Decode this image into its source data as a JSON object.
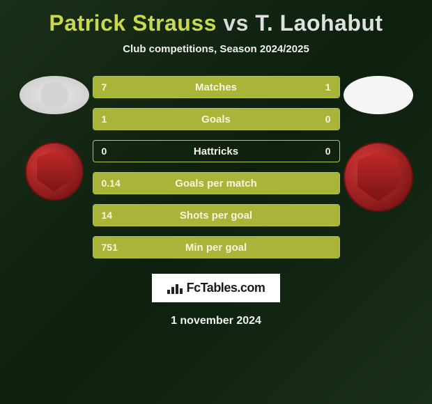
{
  "title": {
    "player1": "Patrick Strauss",
    "vs": "vs",
    "player2": "T. Laohabut",
    "player1_color": "#c9d94a",
    "vs_color": "#d9d9d9",
    "player2_color": "#e0e0e0"
  },
  "subtitle": "Club competitions, Season 2024/2025",
  "background": {
    "gradient_start": "#1a2f1a",
    "gradient_mid": "#0d1f0d",
    "gradient_end": "#1a2f1a"
  },
  "bar_style": {
    "border_color": "#b8c63e",
    "fill_color_p1": "#a8b538",
    "fill_color_p2": "#a8b538",
    "empty_color": "transparent",
    "text_color": "#f5f5e0",
    "height": 32,
    "radius": 4
  },
  "stats": [
    {
      "label": "Matches",
      "v1": "7",
      "v2": "1",
      "pct1": 0.88,
      "pct2": 0.12
    },
    {
      "label": "Goals",
      "v1": "1",
      "v2": "0",
      "pct1": 1.0,
      "pct2": 0.0
    },
    {
      "label": "Hattricks",
      "v1": "0",
      "v2": "0",
      "pct1": 0.0,
      "pct2": 0.0
    },
    {
      "label": "Goals per match",
      "v1": "0.14",
      "v2": "",
      "pct1": 1.0,
      "pct2": 0.0
    },
    {
      "label": "Shots per goal",
      "v1": "14",
      "v2": "",
      "pct1": 1.0,
      "pct2": 0.0
    },
    {
      "label": "Min per goal",
      "v1": "751",
      "v2": "",
      "pct1": 1.0,
      "pct2": 0.0
    }
  ],
  "club_badge": {
    "outer_color": "#8a1a1a",
    "inner_color": "#c02828"
  },
  "footer": {
    "site": "FcTables.com",
    "date": "1 november 2024",
    "logo_bg": "#ffffff",
    "logo_text_color": "#1a1a1a"
  }
}
